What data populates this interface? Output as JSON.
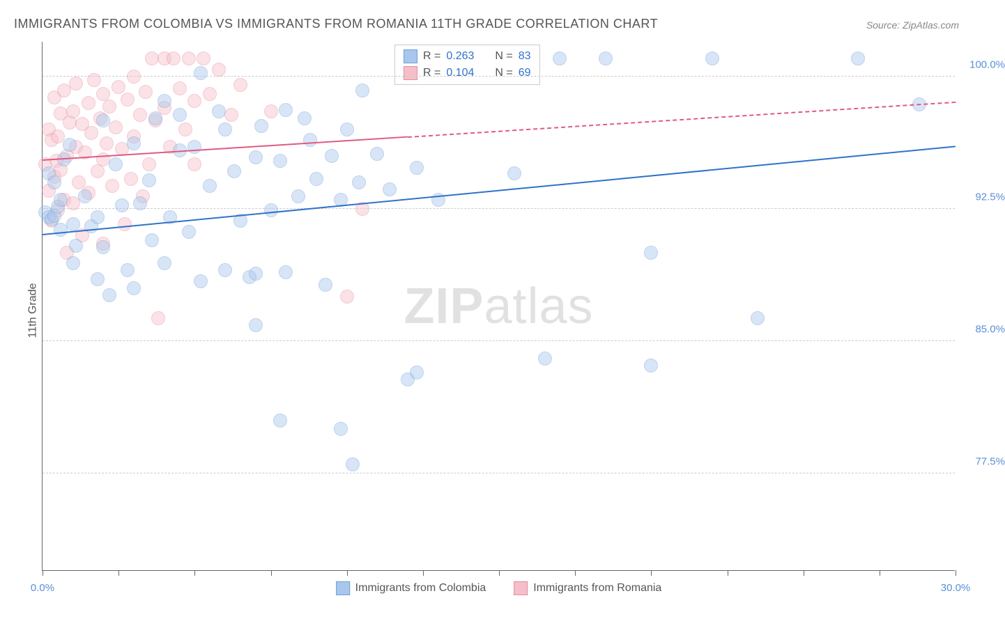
{
  "title": "IMMIGRANTS FROM COLOMBIA VS IMMIGRANTS FROM ROMANIA 11TH GRADE CORRELATION CHART",
  "source": "Source: ZipAtlas.com",
  "ylabel": "11th Grade",
  "watermark_a": "ZIP",
  "watermark_b": "atlas",
  "chart": {
    "type": "scatter",
    "xlim": [
      0,
      30
    ],
    "ylim": [
      72,
      102
    ],
    "x_ticks": [
      0,
      2.5,
      5,
      7.5,
      10,
      12.5,
      15,
      17.5,
      20,
      22.5,
      25,
      27.5,
      30
    ],
    "x_tick_labels": {
      "0": "0.0%",
      "30": "30.0%"
    },
    "y_gridlines": [
      77.5,
      85.0,
      92.5,
      100.0
    ],
    "y_tick_labels": [
      "77.5%",
      "85.0%",
      "92.5%",
      "100.0%"
    ],
    "ytick_color": "#5b8fd6",
    "xtick_color": "#5b8fd6",
    "background_color": "#ffffff",
    "grid_color": "#cccccc",
    "marker_radius": 10,
    "marker_opacity": 0.45,
    "marker_border_opacity": 0.85
  },
  "series_a": {
    "name": "Immigrants from Colombia",
    "color_fill": "#a9c7ec",
    "color_border": "#6d9fdb",
    "r_label": "R = ",
    "r_value": "0.263",
    "n_label": "N = ",
    "n_value": "83",
    "trend": {
      "x1": 0,
      "y1": 91.0,
      "x2": 30,
      "y2": 96.0,
      "solid_until_x": 30,
      "width": 2.5,
      "color": "#2f72c9"
    },
    "points": [
      [
        0.1,
        92.3
      ],
      [
        0.2,
        94.5
      ],
      [
        0.2,
        92.0
      ],
      [
        0.3,
        91.9
      ],
      [
        0.4,
        92.1
      ],
      [
        0.4,
        94.0
      ],
      [
        0.5,
        92.6
      ],
      [
        0.6,
        91.3
      ],
      [
        0.6,
        93.0
      ],
      [
        0.7,
        95.3
      ],
      [
        0.9,
        96.1
      ],
      [
        1.0,
        89.4
      ],
      [
        1.0,
        91.6
      ],
      [
        1.1,
        90.4
      ],
      [
        1.4,
        93.2
      ],
      [
        1.6,
        91.5
      ],
      [
        1.8,
        88.5
      ],
      [
        1.8,
        92.0
      ],
      [
        2.0,
        97.5
      ],
      [
        2.0,
        90.3
      ],
      [
        2.2,
        87.6
      ],
      [
        2.4,
        95.0
      ],
      [
        2.6,
        92.7
      ],
      [
        2.8,
        89.0
      ],
      [
        3.0,
        88.0
      ],
      [
        3.0,
        96.2
      ],
      [
        3.2,
        92.8
      ],
      [
        3.5,
        94.1
      ],
      [
        3.6,
        90.7
      ],
      [
        3.7,
        97.6
      ],
      [
        4.0,
        98.6
      ],
      [
        4.0,
        89.4
      ],
      [
        4.2,
        92.0
      ],
      [
        4.5,
        95.8
      ],
      [
        4.5,
        97.8
      ],
      [
        4.8,
        91.2
      ],
      [
        5.0,
        96.0
      ],
      [
        5.2,
        88.4
      ],
      [
        5.2,
        100.2
      ],
      [
        5.5,
        93.8
      ],
      [
        5.8,
        98.0
      ],
      [
        6.0,
        97.0
      ],
      [
        6.0,
        89.0
      ],
      [
        6.3,
        94.6
      ],
      [
        6.5,
        91.8
      ],
      [
        6.8,
        88.6
      ],
      [
        7.0,
        95.4
      ],
      [
        7.0,
        88.8
      ],
      [
        7.0,
        85.9
      ],
      [
        7.2,
        97.2
      ],
      [
        7.5,
        92.4
      ],
      [
        7.8,
        95.2
      ],
      [
        7.8,
        80.5
      ],
      [
        8.0,
        98.1
      ],
      [
        8.0,
        88.9
      ],
      [
        8.4,
        93.2
      ],
      [
        8.6,
        97.6
      ],
      [
        8.8,
        96.4
      ],
      [
        9.0,
        94.2
      ],
      [
        9.3,
        88.2
      ],
      [
        9.5,
        95.5
      ],
      [
        9.8,
        93.0
      ],
      [
        9.8,
        80.0
      ],
      [
        10.0,
        97.0
      ],
      [
        10.2,
        78.0
      ],
      [
        10.4,
        94.0
      ],
      [
        10.5,
        99.2
      ],
      [
        11.0,
        95.6
      ],
      [
        11.4,
        93.6
      ],
      [
        12.0,
        82.8
      ],
      [
        12.3,
        94.8
      ],
      [
        12.3,
        83.2
      ],
      [
        13.0,
        93.0
      ],
      [
        15.5,
        94.5
      ],
      [
        16.5,
        84.0
      ],
      [
        17.0,
        101.0
      ],
      [
        18.5,
        101.0
      ],
      [
        20.0,
        90.0
      ],
      [
        20.0,
        83.6
      ],
      [
        22.0,
        101.0
      ],
      [
        23.5,
        86.3
      ],
      [
        26.8,
        101.0
      ],
      [
        28.8,
        98.4
      ]
    ]
  },
  "series_b": {
    "name": "Immigrants from Romania",
    "color_fill": "#f4bfc9",
    "color_border": "#e88ba0",
    "r_label": "R = ",
    "r_value": "0.104",
    "n_label": "N = ",
    "n_value": "69",
    "trend": {
      "x1": 0,
      "y1": 95.2,
      "x2": 30,
      "y2": 98.5,
      "solid_until_x": 12,
      "width": 2.5,
      "color": "#e05a80"
    },
    "points": [
      [
        0.1,
        95.0
      ],
      [
        0.2,
        93.5
      ],
      [
        0.2,
        97.0
      ],
      [
        0.3,
        91.8
      ],
      [
        0.3,
        96.4
      ],
      [
        0.4,
        94.3
      ],
      [
        0.4,
        98.8
      ],
      [
        0.45,
        95.2
      ],
      [
        0.5,
        96.6
      ],
      [
        0.5,
        92.4
      ],
      [
        0.6,
        94.7
      ],
      [
        0.6,
        97.9
      ],
      [
        0.7,
        93.0
      ],
      [
        0.7,
        99.2
      ],
      [
        0.8,
        95.5
      ],
      [
        0.8,
        90.0
      ],
      [
        0.9,
        97.4
      ],
      [
        1.0,
        98.0
      ],
      [
        1.0,
        92.8
      ],
      [
        1.1,
        96.0
      ],
      [
        1.1,
        99.6
      ],
      [
        1.2,
        94.0
      ],
      [
        1.3,
        91.0
      ],
      [
        1.3,
        97.3
      ],
      [
        1.4,
        95.7
      ],
      [
        1.5,
        98.5
      ],
      [
        1.5,
        93.4
      ],
      [
        1.6,
        96.8
      ],
      [
        1.7,
        99.8
      ],
      [
        1.8,
        94.6
      ],
      [
        1.9,
        97.6
      ],
      [
        2.0,
        95.3
      ],
      [
        2.0,
        99.0
      ],
      [
        2.0,
        90.5
      ],
      [
        2.1,
        96.2
      ],
      [
        2.2,
        98.3
      ],
      [
        2.3,
        93.8
      ],
      [
        2.4,
        97.1
      ],
      [
        2.5,
        99.4
      ],
      [
        2.6,
        95.9
      ],
      [
        2.7,
        91.6
      ],
      [
        2.8,
        98.7
      ],
      [
        2.9,
        94.2
      ],
      [
        3.0,
        96.6
      ],
      [
        3.0,
        100.0
      ],
      [
        3.2,
        97.8
      ],
      [
        3.3,
        93.2
      ],
      [
        3.4,
        99.1
      ],
      [
        3.5,
        95.0
      ],
      [
        3.6,
        101.0
      ],
      [
        3.7,
        97.5
      ],
      [
        3.8,
        86.3
      ],
      [
        4.0,
        98.2
      ],
      [
        4.0,
        101.0
      ],
      [
        4.2,
        96.0
      ],
      [
        4.3,
        101.0
      ],
      [
        4.5,
        99.3
      ],
      [
        4.7,
        97.0
      ],
      [
        4.8,
        101.0
      ],
      [
        5.0,
        98.6
      ],
      [
        5.0,
        95.0
      ],
      [
        5.3,
        101.0
      ],
      [
        5.5,
        99.0
      ],
      [
        5.8,
        100.4
      ],
      [
        6.2,
        97.8
      ],
      [
        6.5,
        99.5
      ],
      [
        7.5,
        98.0
      ],
      [
        10.0,
        87.5
      ],
      [
        10.5,
        92.5
      ]
    ]
  }
}
